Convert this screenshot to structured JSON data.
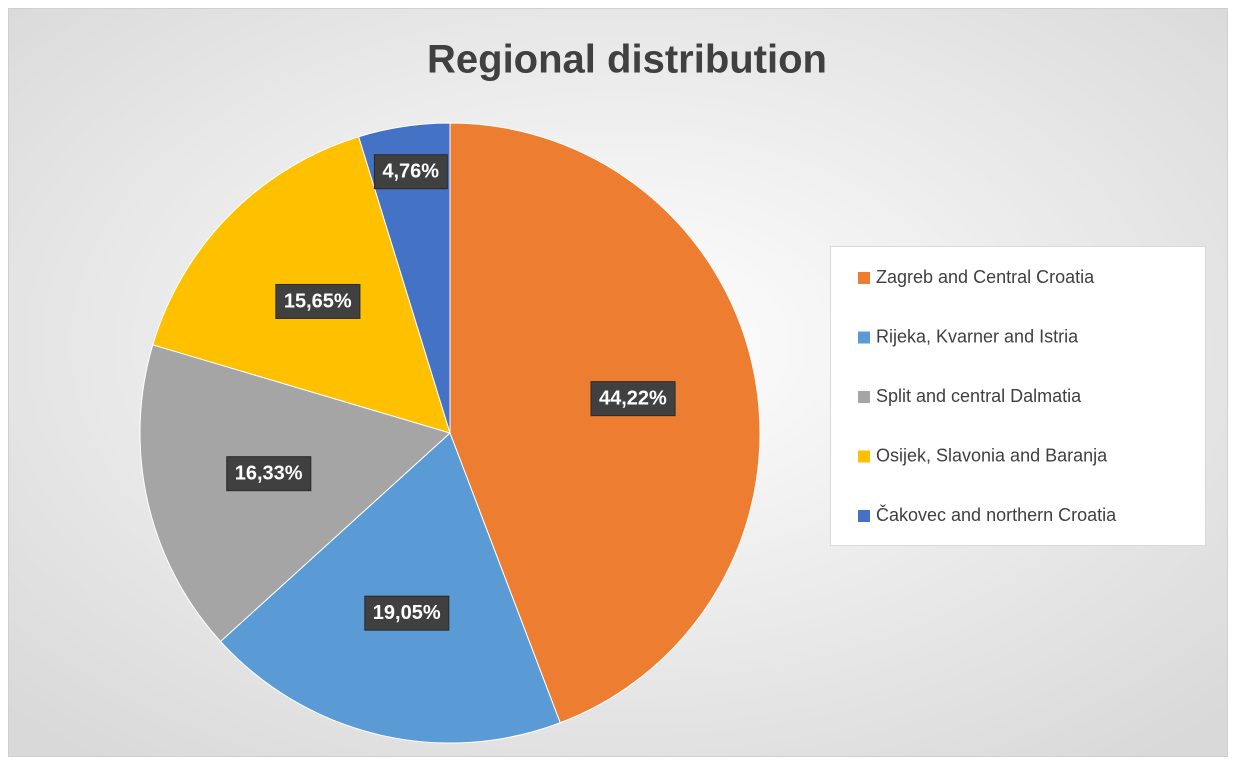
{
  "chart_data": {
    "type": "pie",
    "title": "Regional distribution",
    "categories": [
      "Zagreb and Central Croatia",
      "Rijeka, Kvarner and Istria",
      "Split and central Dalmatia",
      "Osijek, Slavonia and Baranja",
      "Čakovec and northern Croatia"
    ],
    "values": [
      44.22,
      19.05,
      16.33,
      15.65,
      4.76
    ],
    "value_labels": [
      "44,22%",
      "19,05%",
      "16,33%",
      "15,65%",
      "4,76%"
    ],
    "colors": [
      "#ed7d31",
      "#5b9bd5",
      "#a5a5a5",
      "#ffc000",
      "#4472c4"
    ],
    "legend": "right"
  }
}
